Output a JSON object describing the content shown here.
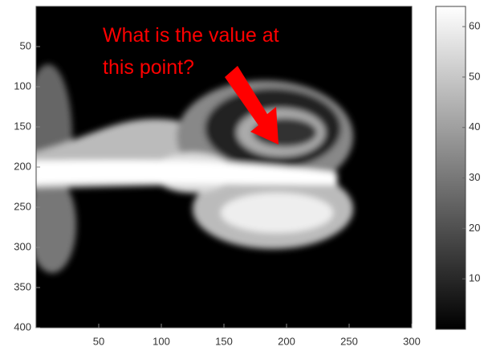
{
  "chart_data": {
    "type": "image",
    "xlim": [
      0,
      300
    ],
    "xticks": [
      50,
      100,
      150,
      200,
      250,
      300
    ],
    "ylim": [
      0,
      400
    ],
    "y_reversed": true,
    "yticks": [
      50,
      100,
      150,
      200,
      250,
      300,
      350,
      400
    ],
    "colorbar": {
      "clim": [
        0,
        64
      ],
      "ticks": [
        10,
        20,
        30,
        40,
        50,
        60
      ],
      "colormap": "gray"
    },
    "annotation": {
      "lines": [
        "What is the value at",
        "this point?"
      ],
      "color": "#ff0000"
    }
  }
}
